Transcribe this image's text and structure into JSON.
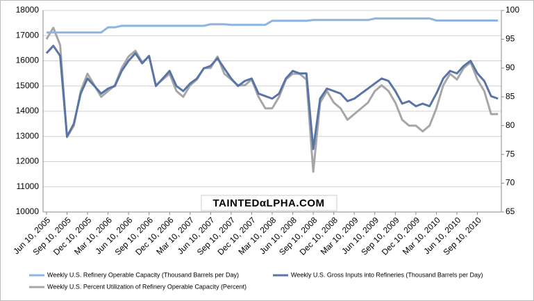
{
  "chart_data": {
    "type": "line",
    "watermark": "TAINTEDαLPHA.COM",
    "categories": [
      "Jun 10, 2005",
      null,
      null,
      "Sep 10, 2005",
      null,
      null,
      "Dec 10, 2005",
      null,
      null,
      "Mar 10, 2006",
      null,
      null,
      "Jun 10, 2006",
      null,
      null,
      "Sep 10, 2006",
      null,
      null,
      "Dec 10, 2006",
      null,
      null,
      "Mar 10, 2007",
      null,
      null,
      "Jun 10, 2007",
      null,
      null,
      "Sep 10, 2007",
      null,
      null,
      "Dec 10, 2007",
      null,
      null,
      "Mar 10, 2008",
      null,
      null,
      "Jun 10, 2008",
      null,
      null,
      "Sep 10, 2008",
      null,
      null,
      "Dec 10, 2008",
      null,
      null,
      "Mar 10, 2009",
      null,
      null,
      "Jun 10, 2009",
      null,
      null,
      "Sep 10, 2009",
      null,
      null,
      "Dec 10, 2009",
      null,
      null,
      "Mar 10, 2010",
      null,
      null,
      "Jun 10, 2010",
      null,
      null,
      "Sep 10, 2010",
      null,
      null,
      null
    ],
    "series": [
      {
        "name": "Weekly U.S. Refinery Operable Capacity  (Thousand Barrels per Day)",
        "color": "#8eb4e3",
        "values": [
          17125,
          17125,
          17125,
          17125,
          17125,
          17125,
          17125,
          17125,
          17125,
          17330,
          17330,
          17390,
          17390,
          17390,
          17390,
          17390,
          17390,
          17390,
          17390,
          17390,
          17390,
          17390,
          17390,
          17390,
          17450,
          17450,
          17450,
          17430,
          17430,
          17430,
          17430,
          17430,
          17430,
          17590,
          17590,
          17590,
          17590,
          17590,
          17590,
          17620,
          17620,
          17620,
          17620,
          17620,
          17620,
          17620,
          17620,
          17620,
          17680,
          17680,
          17680,
          17680,
          17680,
          17680,
          17680,
          17680,
          17680,
          17600,
          17600,
          17600,
          17600,
          17600,
          17600,
          17600,
          17600,
          17600,
          17600
        ]
      },
      {
        "name": "Weekly U.S. Gross Inputs into Refineries  (Thousand Barrels per Day)",
        "color": "#5875a6",
        "values": [
          16300,
          16600,
          16200,
          13000,
          13500,
          14700,
          15300,
          15000,
          14700,
          14900,
          15000,
          15600,
          16000,
          16300,
          15900,
          16200,
          15000,
          15300,
          15600,
          15000,
          14800,
          15100,
          15300,
          15700,
          15800,
          16100,
          15700,
          15300,
          15000,
          15200,
          15300,
          14700,
          14600,
          14500,
          14700,
          15300,
          15600,
          15500,
          15500,
          12500,
          14500,
          14900,
          14800,
          14700,
          14400,
          14500,
          14700,
          14900,
          15100,
          15300,
          15200,
          14800,
          14300,
          14400,
          14200,
          14300,
          14200,
          14700,
          15300,
          15600,
          15500,
          15800,
          16000,
          15500,
          15200,
          14600,
          14500
        ]
      },
      {
        "name": "Weekly U.S. Percent Utilization of Refinery Operable Capacity  (Percent)",
        "color": "#a6a6a6",
        "axis": "y2",
        "values": [
          95,
          97,
          94,
          78,
          80,
          86,
          89,
          87,
          85,
          86,
          87,
          90,
          92,
          93,
          91,
          92,
          87,
          88,
          89,
          86,
          85,
          87,
          88,
          90,
          90,
          92,
          89,
          88,
          87,
          87,
          88,
          85,
          83,
          83,
          85,
          88,
          89,
          89,
          88,
          72,
          84,
          86,
          84,
          83,
          81,
          82,
          83,
          84,
          86,
          87,
          86,
          84,
          81,
          80,
          80,
          79,
          80,
          83,
          87,
          89,
          88,
          90,
          91,
          88,
          86,
          82,
          82
        ]
      }
    ],
    "ylim": [
      10000,
      18000
    ],
    "yticks": [
      10000,
      11000,
      12000,
      13000,
      14000,
      15000,
      16000,
      17000,
      18000
    ],
    "y2lim": [
      65,
      100
    ],
    "y2ticks": [
      65,
      70,
      75,
      80,
      85,
      90,
      95,
      100
    ],
    "grid": true
  }
}
